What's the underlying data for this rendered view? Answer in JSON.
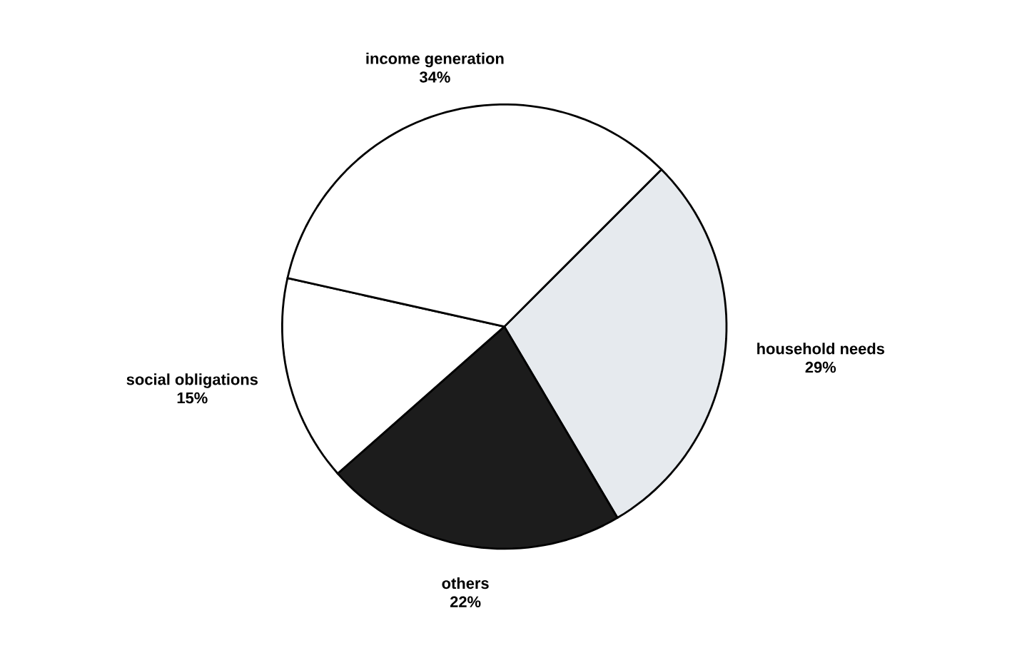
{
  "chart_data": {
    "type": "pie",
    "categories": [
      "household needs",
      "others",
      "social obligations",
      "income generation"
    ],
    "values": [
      29,
      22,
      15,
      34
    ],
    "colors": [
      "#e6eaee",
      "#1c1c1c",
      "#ffffff",
      "#ffffff"
    ],
    "value_labels": [
      "29%",
      "22%",
      "15%",
      "34%"
    ]
  }
}
